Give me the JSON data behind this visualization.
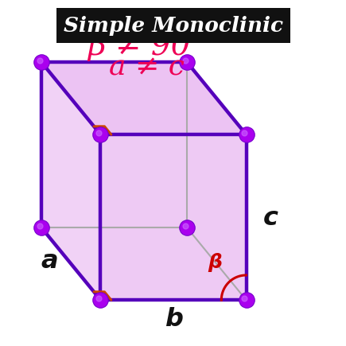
{
  "title": "Simple Monoclinic",
  "formula_line1": "β ≠ 90°",
  "formula_line2": "a ≠ c",
  "label_a": "a",
  "label_b": "b",
  "label_c": "c",
  "label_beta": "β",
  "bg_color": "#ffffff",
  "title_bg": "#111111",
  "title_fg": "#ffffff",
  "formula_color": "#ee0055",
  "edge_color_main": "#5500bb",
  "edge_color_back": "#aaaaaa",
  "face_color": "#e8b4f0",
  "node_color": "#aa00ee",
  "right_angle_color": "#cc4400",
  "beta_arc_color": "#cc0000",
  "label_color": "#111111",
  "ox": 0.72,
  "oy": 0.115,
  "b_vec": [
    -0.44,
    0.0
  ],
  "a_vec": [
    -0.18,
    0.22
  ],
  "c_vec": [
    0.0,
    0.5
  ]
}
